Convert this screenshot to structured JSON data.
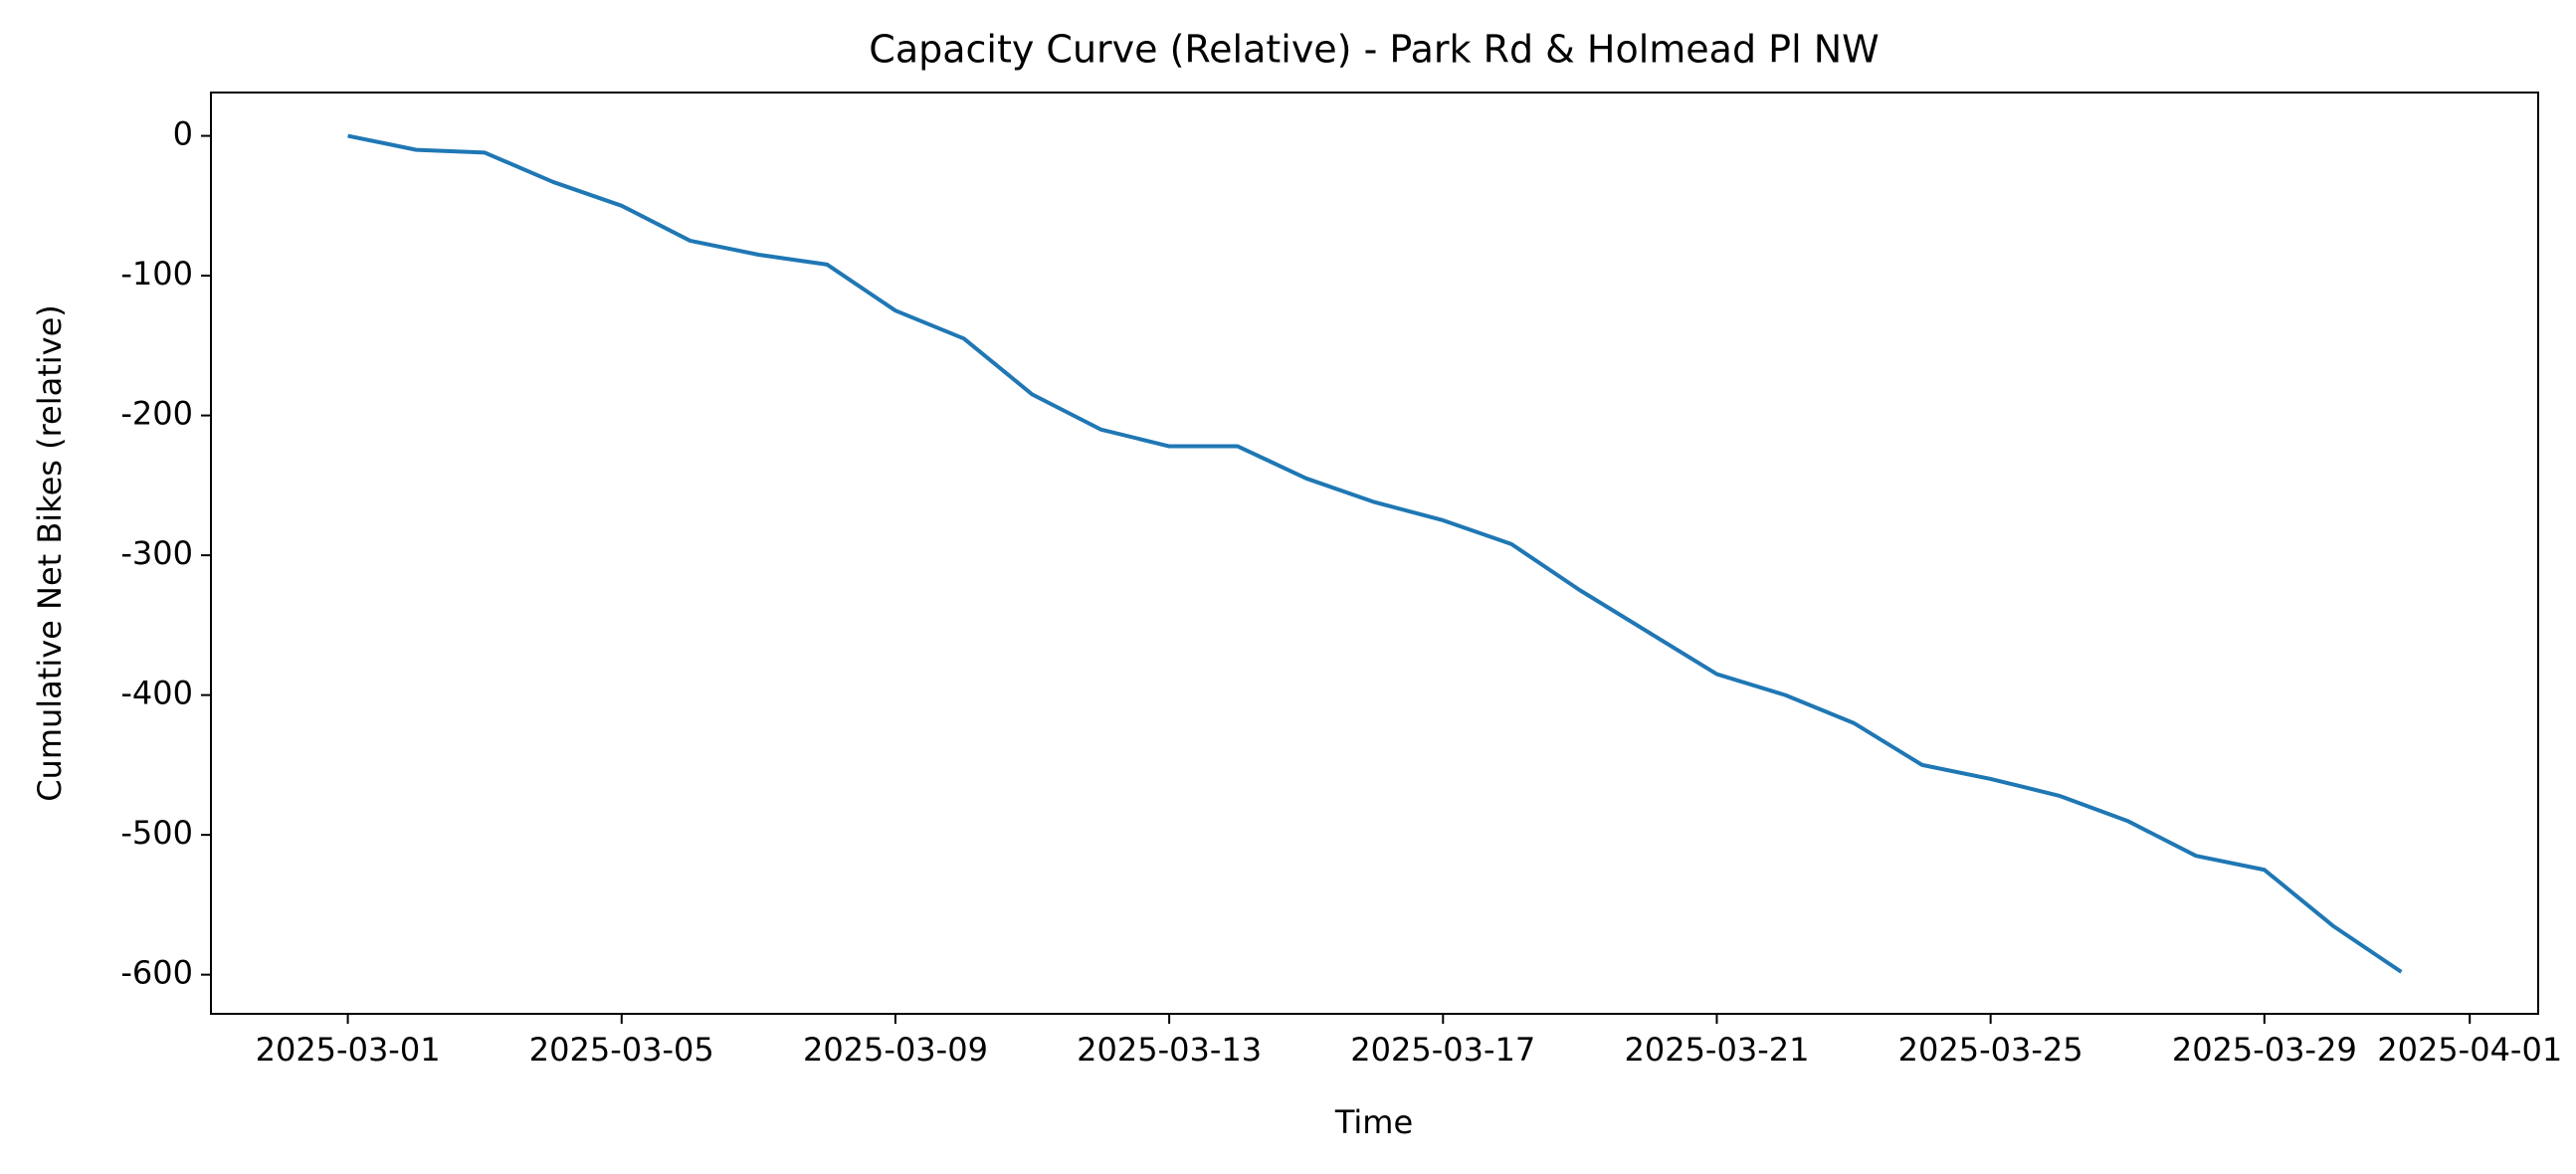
{
  "chart_data": {
    "type": "line",
    "title": "Capacity Curve (Relative) - Park Rd & Holmead Pl NW",
    "xlabel": "Time",
    "ylabel": "Cumulative Net Bikes (relative)",
    "x": [
      "2025-03-01",
      "2025-03-02",
      "2025-03-03",
      "2025-03-04",
      "2025-03-05",
      "2025-03-06",
      "2025-03-07",
      "2025-03-08",
      "2025-03-09",
      "2025-03-10",
      "2025-03-11",
      "2025-03-12",
      "2025-03-13",
      "2025-03-14",
      "2025-03-15",
      "2025-03-16",
      "2025-03-17",
      "2025-03-18",
      "2025-03-19",
      "2025-03-20",
      "2025-03-21",
      "2025-03-22",
      "2025-03-23",
      "2025-03-24",
      "2025-03-25",
      "2025-03-26",
      "2025-03-27",
      "2025-03-28",
      "2025-03-29",
      "2025-03-30",
      "2025-03-31"
    ],
    "series": [
      {
        "color": "#1f77b4",
        "values": [
          0,
          -10,
          -12,
          -33,
          -50,
          -75,
          -85,
          -92,
          -125,
          -145,
          -185,
          -210,
          -222,
          -222,
          -245,
          -262,
          -275,
          -292,
          -325,
          -355,
          -385,
          -400,
          -420,
          -450,
          -460,
          -472,
          -490,
          -515,
          -525,
          -565,
          -598
        ]
      }
    ],
    "xlim": [
      "2025-02-27",
      "2025-04-02"
    ],
    "xticks": [
      "2025-03-01",
      "2025-03-05",
      "2025-03-09",
      "2025-03-13",
      "2025-03-17",
      "2025-03-21",
      "2025-03-25",
      "2025-03-29",
      "2025-04-01"
    ],
    "ylim": [
      -628,
      31
    ],
    "yticks": [
      0,
      -100,
      -200,
      -300,
      -400,
      -500,
      -600
    ]
  }
}
